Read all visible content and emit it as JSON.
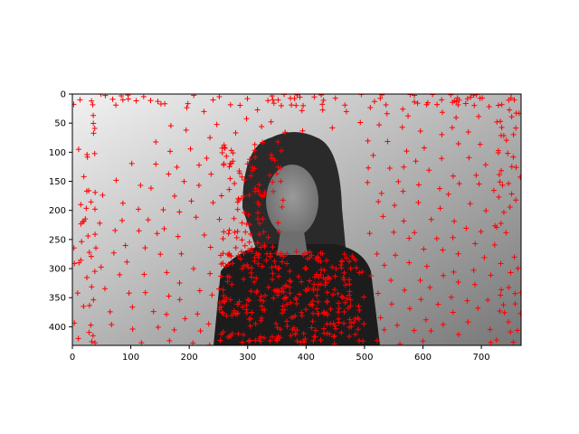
{
  "chart_data": {
    "type": "scatter",
    "title": "",
    "xlabel": "",
    "ylabel": "",
    "xlim": [
      0,
      768
    ],
    "ylim": [
      432,
      0
    ],
    "y_inverted": true,
    "grid": false,
    "background": "grayscale photograph of a woman with long dark hair in a dark top against a gray gradient wall",
    "marker": "+",
    "marker_color": "#ff0000",
    "x_ticks": [
      0,
      100,
      200,
      300,
      400,
      500,
      600,
      700
    ],
    "y_ticks": [
      0,
      50,
      100,
      150,
      200,
      250,
      300,
      350,
      400
    ],
    "approx_point_count": 900
  }
}
